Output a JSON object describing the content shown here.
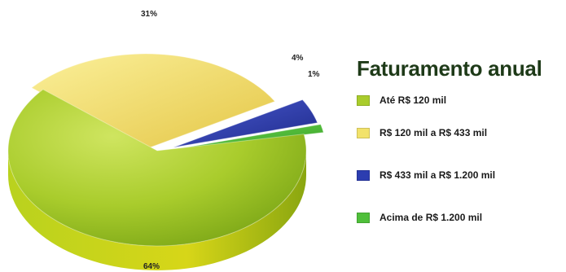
{
  "chart_data": {
    "type": "pie",
    "title": "Faturamento anual",
    "slices": [
      {
        "label": "Até R$ 120 mil",
        "value": 64,
        "value_label": "64%",
        "color": "#a9cc2c"
      },
      {
        "label": "R$ 120 mil a R$ 433 mil",
        "value": 31,
        "value_label": "31%",
        "color": "#f2e26a"
      },
      {
        "label": "R$ 433 mil a R$ 1.200 mil",
        "value": 4,
        "value_label": "4%",
        "color": "#2c3db0"
      },
      {
        "label": "Acima de R$ 1.200 mil",
        "value": 1,
        "value_label": "1%",
        "color": "#4fbf3a"
      }
    ],
    "legend_position": "right"
  }
}
